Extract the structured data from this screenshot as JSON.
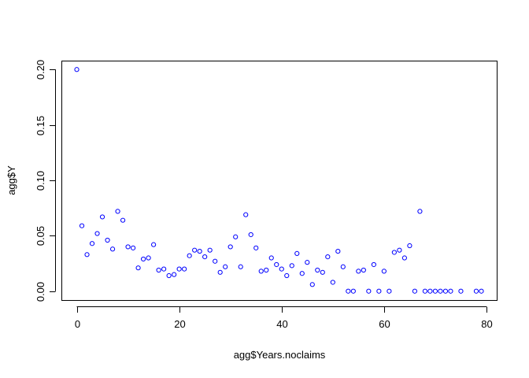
{
  "chart_data": {
    "type": "scatter",
    "xlabel": "agg$Years.noclaims",
    "ylabel": "agg$Y",
    "xlim": [
      -3,
      82
    ],
    "ylim": [
      -0.008,
      0.208
    ],
    "x_ticks": [
      0,
      20,
      40,
      60,
      80
    ],
    "x_tick_labels": [
      "0",
      "20",
      "40",
      "60",
      "80"
    ],
    "y_ticks": [
      0.0,
      0.05,
      0.1,
      0.15,
      0.2
    ],
    "y_tick_labels": [
      "0.00",
      "0.05",
      "0.10",
      "0.15",
      "0.20"
    ],
    "grid": false,
    "legend": "none",
    "point_color": "#0000ff",
    "points": [
      {
        "x": 0,
        "y": 0.2
      },
      {
        "x": 1,
        "y": 0.059
      },
      {
        "x": 2,
        "y": 0.033
      },
      {
        "x": 3,
        "y": 0.043
      },
      {
        "x": 4,
        "y": 0.052
      },
      {
        "x": 5,
        "y": 0.067
      },
      {
        "x": 6,
        "y": 0.046
      },
      {
        "x": 7,
        "y": 0.038
      },
      {
        "x": 8,
        "y": 0.072
      },
      {
        "x": 9,
        "y": 0.064
      },
      {
        "x": 10,
        "y": 0.04
      },
      {
        "x": 11,
        "y": 0.039
      },
      {
        "x": 12,
        "y": 0.021
      },
      {
        "x": 13,
        "y": 0.029
      },
      {
        "x": 14,
        "y": 0.03
      },
      {
        "x": 15,
        "y": 0.042
      },
      {
        "x": 16,
        "y": 0.019
      },
      {
        "x": 17,
        "y": 0.02
      },
      {
        "x": 18,
        "y": 0.014
      },
      {
        "x": 19,
        "y": 0.015
      },
      {
        "x": 20,
        "y": 0.02
      },
      {
        "x": 21,
        "y": 0.02
      },
      {
        "x": 22,
        "y": 0.032
      },
      {
        "x": 23,
        "y": 0.037
      },
      {
        "x": 24,
        "y": 0.036
      },
      {
        "x": 25,
        "y": 0.031
      },
      {
        "x": 26,
        "y": 0.037
      },
      {
        "x": 27,
        "y": 0.027
      },
      {
        "x": 28,
        "y": 0.017
      },
      {
        "x": 29,
        "y": 0.022
      },
      {
        "x": 30,
        "y": 0.04
      },
      {
        "x": 31,
        "y": 0.049
      },
      {
        "x": 32,
        "y": 0.022
      },
      {
        "x": 33,
        "y": 0.069
      },
      {
        "x": 34,
        "y": 0.051
      },
      {
        "x": 35,
        "y": 0.039
      },
      {
        "x": 36,
        "y": 0.018
      },
      {
        "x": 37,
        "y": 0.019
      },
      {
        "x": 38,
        "y": 0.03
      },
      {
        "x": 39,
        "y": 0.024
      },
      {
        "x": 40,
        "y": 0.02
      },
      {
        "x": 41,
        "y": 0.014
      },
      {
        "x": 42,
        "y": 0.023
      },
      {
        "x": 43,
        "y": 0.034
      },
      {
        "x": 44,
        "y": 0.016
      },
      {
        "x": 45,
        "y": 0.026
      },
      {
        "x": 46,
        "y": 0.006
      },
      {
        "x": 47,
        "y": 0.019
      },
      {
        "x": 48,
        "y": 0.017
      },
      {
        "x": 49,
        "y": 0.031
      },
      {
        "x": 50,
        "y": 0.008
      },
      {
        "x": 51,
        "y": 0.036
      },
      {
        "x": 52,
        "y": 0.022
      },
      {
        "x": 53,
        "y": 0.0
      },
      {
        "x": 54,
        "y": 0.0
      },
      {
        "x": 55,
        "y": 0.018
      },
      {
        "x": 56,
        "y": 0.019
      },
      {
        "x": 57,
        "y": 0.0
      },
      {
        "x": 58,
        "y": 0.024
      },
      {
        "x": 59,
        "y": 0.0
      },
      {
        "x": 60,
        "y": 0.018
      },
      {
        "x": 61,
        "y": 0.0
      },
      {
        "x": 62,
        "y": 0.035
      },
      {
        "x": 63,
        "y": 0.037
      },
      {
        "x": 64,
        "y": 0.03
      },
      {
        "x": 65,
        "y": 0.041
      },
      {
        "x": 66,
        "y": 0.0
      },
      {
        "x": 67,
        "y": 0.072
      },
      {
        "x": 68,
        "y": 0.0
      },
      {
        "x": 69,
        "y": 0.0
      },
      {
        "x": 70,
        "y": 0.0
      },
      {
        "x": 71,
        "y": 0.0
      },
      {
        "x": 72,
        "y": 0.0
      },
      {
        "x": 73,
        "y": 0.0
      },
      {
        "x": 75,
        "y": 0.0
      },
      {
        "x": 78,
        "y": 0.0
      },
      {
        "x": 79,
        "y": 0.0
      }
    ]
  }
}
